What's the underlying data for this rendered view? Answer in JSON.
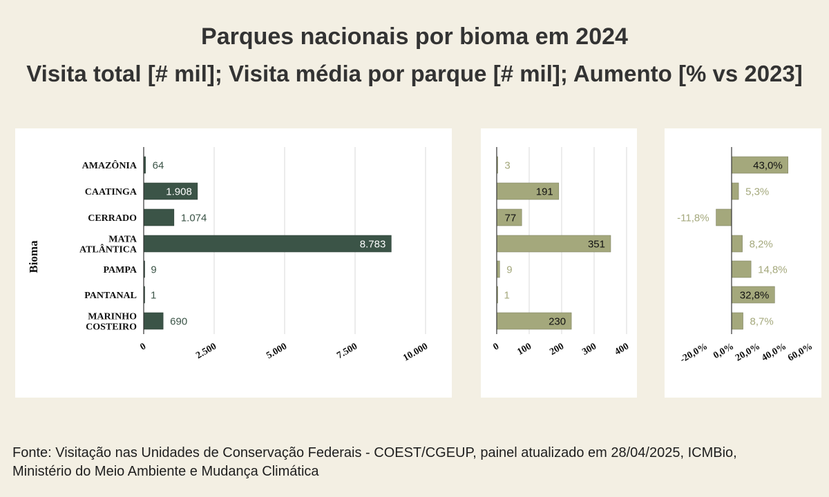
{
  "title": "Parques nacionais por bioma em 2024",
  "subtitle": "Visita total [# mil]; Visita média por parque [# mil]; Aumento [% vs 2023]",
  "footer": {
    "line1": "Fonte: Visitação nas Unidades de Conservação Federais - COEST/CGEUP, painel atualizado em 28/04/2025, ICMBio,",
    "line2": "Ministério do Meio Ambiente e Mudança Climática"
  },
  "colors": {
    "background": "#f3efe3",
    "panel": "#ffffff",
    "dark_bar": "#3b5447",
    "light_bar": "#a4a87c",
    "grid": "#d9d9d9",
    "axis": "#333333"
  },
  "chart_data": [
    {
      "type": "bar",
      "orientation": "horizontal",
      "ylabel": "Bioma",
      "categories": [
        [
          "AMAZÔNIA"
        ],
        [
          "CAATINGA"
        ],
        [
          "CERRADO"
        ],
        [
          "MATA",
          "ATLÂNTICA"
        ],
        [
          "PAMPA"
        ],
        [
          "PANTANAL"
        ],
        [
          "MARINHO",
          "COSTEIRO"
        ]
      ],
      "series": [
        {
          "name": "Visita total [# mil]",
          "values": [
            64,
            1908,
            1074,
            8783,
            9,
            1,
            690
          ]
        }
      ],
      "data_labels": [
        "64",
        "1.908",
        "1.074",
        "8.783",
        "9",
        "1",
        "690"
      ],
      "xlim": [
        0,
        10000
      ],
      "ticks": [
        0,
        2500,
        5000,
        7500,
        10000
      ],
      "tick_labels": [
        "0",
        "2.500",
        "5.000",
        "7.500",
        "10.000"
      ],
      "grid": true
    },
    {
      "type": "bar",
      "orientation": "horizontal",
      "series": [
        {
          "name": "Visita média por parque [# mil]",
          "values": [
            3,
            191,
            77,
            351,
            9,
            1,
            230
          ]
        }
      ],
      "data_labels": [
        "3",
        "191",
        "77",
        "351",
        "9",
        "1",
        "230"
      ],
      "xlim": [
        0,
        400
      ],
      "ticks": [
        0,
        100,
        200,
        300,
        400
      ],
      "tick_labels": [
        "0",
        "100",
        "200",
        "300",
        "400"
      ],
      "grid": true
    },
    {
      "type": "bar",
      "orientation": "horizontal",
      "series": [
        {
          "name": "Aumento [% vs 2023]",
          "values": [
            43.0,
            5.3,
            -11.8,
            8.2,
            14.8,
            32.8,
            8.7
          ]
        }
      ],
      "data_labels": [
        "43,0%",
        "5,3%",
        "-11,8%",
        "8,2%",
        "14,8%",
        "32,8%",
        "8,7%"
      ],
      "xlim": [
        -20,
        60
      ],
      "ticks": [
        -20,
        0,
        20,
        40,
        60
      ],
      "tick_labels": [
        "-20,0%",
        "0,0%",
        "20,0%",
        "40,0%",
        "60,0%"
      ],
      "grid": false
    }
  ]
}
